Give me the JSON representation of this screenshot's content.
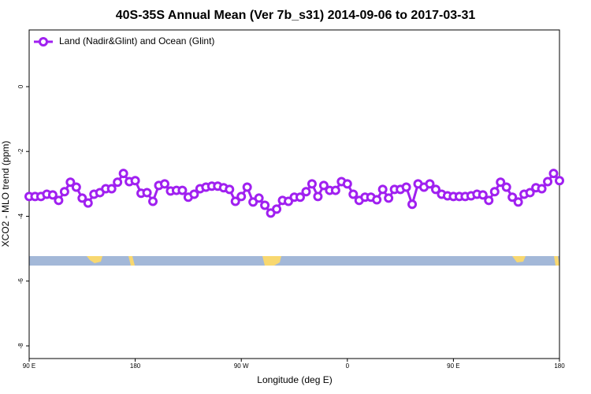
{
  "chart_data": {
    "type": "line",
    "title": "40S-35S Annual Mean (Ver 7b_s31)   2014-09-06 to 2017-03-31",
    "xlabel": "Longitude (deg E)",
    "ylabel": "XCO2 - MLO trend (ppm)",
    "x": [
      90,
      95,
      100,
      105,
      110,
      115,
      120,
      125,
      130,
      135,
      140,
      145,
      150,
      155,
      160,
      165,
      170,
      175,
      180,
      185,
      190,
      195,
      200,
      205,
      210,
      215,
      220,
      225,
      230,
      235,
      240,
      245,
      250,
      255,
      260,
      265,
      270,
      275,
      280,
      285,
      290,
      295,
      300,
      305,
      310,
      315,
      320,
      325,
      330,
      335,
      340,
      345,
      350,
      355,
      360,
      365,
      370,
      375,
      380,
      385,
      390,
      395,
      400,
      405,
      410,
      415,
      420,
      425,
      430,
      435,
      440,
      445,
      450,
      455,
      460,
      465,
      470,
      475,
      480,
      485,
      490,
      495,
      500,
      505,
      510,
      515,
      520,
      525,
      530,
      535,
      540
    ],
    "series": [
      {
        "name": "Land (Nadir&Glint) and Ocean (Glint)",
        "color": "#a020f0",
        "values": [
          -3.39,
          -3.39,
          -3.39,
          -3.32,
          -3.34,
          -3.51,
          -3.24,
          -2.95,
          -3.1,
          -3.44,
          -3.59,
          -3.32,
          -3.27,
          -3.15,
          -3.15,
          -2.95,
          -2.68,
          -2.93,
          -2.9,
          -3.29,
          -3.27,
          -3.54,
          -3.05,
          -3.0,
          -3.22,
          -3.2,
          -3.2,
          -3.41,
          -3.32,
          -3.15,
          -3.1,
          -3.07,
          -3.07,
          -3.12,
          -3.17,
          -3.54,
          -3.39,
          -3.1,
          -3.56,
          -3.44,
          -3.66,
          -3.9,
          -3.78,
          -3.51,
          -3.54,
          -3.41,
          -3.41,
          -3.24,
          -3.0,
          -3.39,
          -3.05,
          -3.2,
          -3.2,
          -2.93,
          -3.0,
          -3.32,
          -3.51,
          -3.41,
          -3.41,
          -3.49,
          -3.17,
          -3.44,
          -3.17,
          -3.17,
          -3.1,
          -3.63,
          -3.0,
          -3.1,
          -3.0,
          -3.17,
          -3.32,
          -3.37,
          -3.39,
          -3.39,
          -3.39,
          -3.37,
          -3.32,
          -3.34,
          -3.51,
          -3.24,
          -2.95,
          -3.1,
          -3.41,
          -3.56,
          -3.32,
          -3.27,
          -3.12,
          -3.15,
          -2.93,
          -2.68,
          -2.9
        ]
      }
    ],
    "xlim": [
      90,
      540
    ],
    "xticks": [
      {
        "value": 90,
        "label": "90 E"
      },
      {
        "value": 180,
        "label": "180"
      },
      {
        "value": 270,
        "label": "90 W"
      },
      {
        "value": 360,
        "label": "0"
      },
      {
        "value": 450,
        "label": "90 E"
      },
      {
        "value": 540,
        "label": "180"
      }
    ],
    "ylim": [
      -8.39,
      1.75
    ],
    "yticks": [
      0,
      -2,
      -4,
      -6,
      -8
    ],
    "legend": "top-left"
  }
}
